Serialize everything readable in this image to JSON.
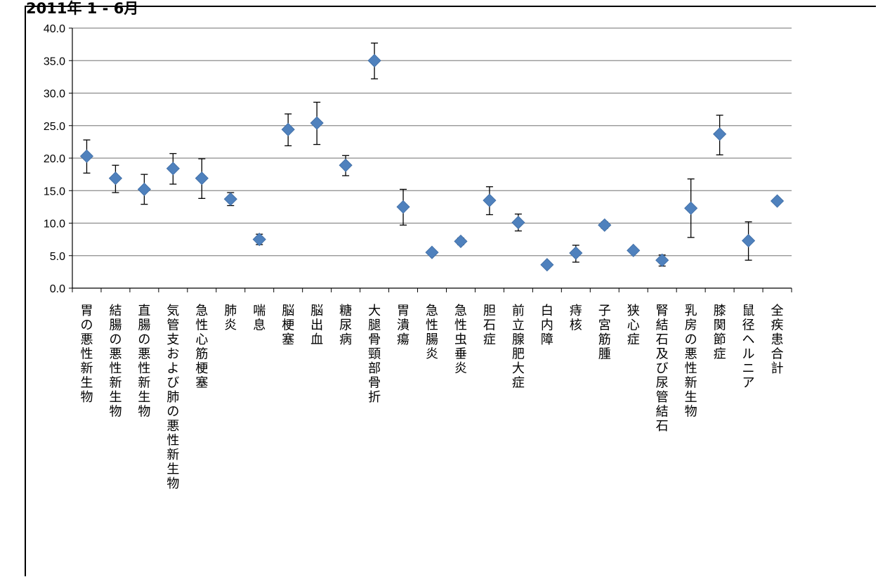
{
  "header": {
    "title": "2011年 1 - 6月"
  },
  "chart_data": {
    "type": "scatter",
    "title": "",
    "xlabel": "",
    "ylabel": "",
    "ylim": [
      0,
      40
    ],
    "yticks": [
      "0.0",
      "5.0",
      "10.0",
      "15.0",
      "20.0",
      "25.0",
      "30.0",
      "35.0",
      "40.0"
    ],
    "grid": true,
    "legend": "none",
    "marker": "diamond",
    "color": "#4f81bd",
    "categories": [
      "胃の悪性新生物",
      "結腸の悪性新生物",
      "直腸の悪性新生物",
      "気管支および肺の悪性新生物",
      "急性心筋梗塞",
      "肺炎",
      "喘息",
      "脳梗塞",
      "脳出血",
      "糖尿病",
      "大腿骨頸部骨折",
      "胃潰瘍",
      "急性腸炎",
      "急性虫垂炎",
      "胆石症",
      "前立腺肥大症",
      "白内障",
      "痔核",
      "子宮筋腫",
      "狭心症",
      "腎結石及び尿管結石",
      "乳房の悪性新生物",
      "膝関節症",
      "鼠径ヘルニア",
      "全疾患合計"
    ],
    "values": [
      20.3,
      16.9,
      15.2,
      18.4,
      16.9,
      13.7,
      7.5,
      24.4,
      25.4,
      18.9,
      35.0,
      12.5,
      5.5,
      7.2,
      13.5,
      10.1,
      3.6,
      5.4,
      9.7,
      5.8,
      4.3,
      12.3,
      23.7,
      7.3,
      13.4
    ],
    "error_upper": [
      22.8,
      18.9,
      17.5,
      20.7,
      19.9,
      14.7,
      8.3,
      26.8,
      28.6,
      20.4,
      37.7,
      15.2,
      5.8,
      7.7,
      15.6,
      11.4,
      3.8,
      6.6,
      10.2,
      6.2,
      5.1,
      16.8,
      26.6,
      10.2,
      13.5
    ],
    "error_lower": [
      17.7,
      14.7,
      12.9,
      16.0,
      13.8,
      12.7,
      6.7,
      21.9,
      22.1,
      17.3,
      32.2,
      9.7,
      5.2,
      6.7,
      11.3,
      8.8,
      3.4,
      4.0,
      9.2,
      5.4,
      3.4,
      7.8,
      20.5,
      4.3,
      13.3
    ]
  }
}
